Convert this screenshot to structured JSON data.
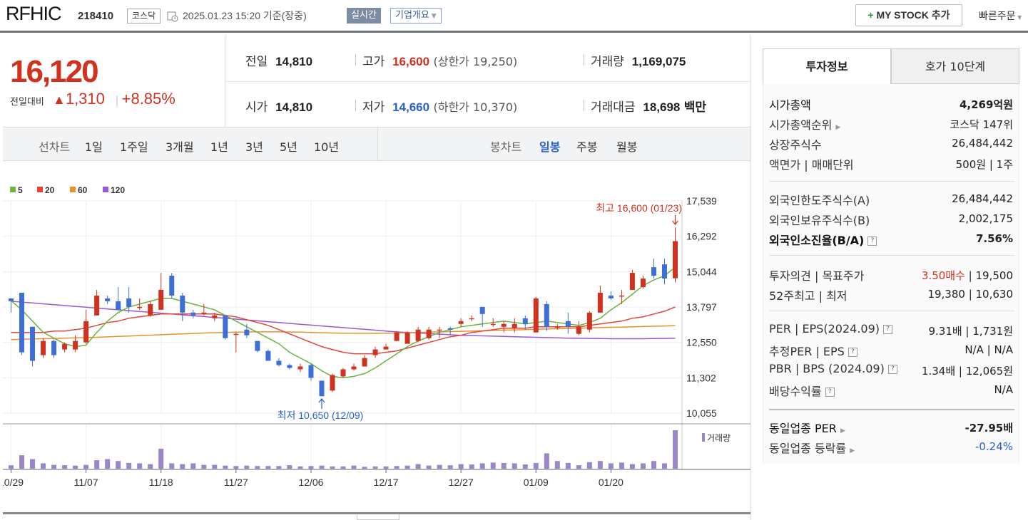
{
  "header": {
    "company": "RFHIC",
    "code": "218410",
    "market": "코스닥",
    "datetime": "2025.01.23 15:20 기준(장중)",
    "realtime": "실시간",
    "company_overview": "기업개요",
    "my_stock": "MY STOCK 추가",
    "quick_order": "빠른주문"
  },
  "summary": {
    "price": "16,120",
    "change_label": "전일대비",
    "change": "1,310",
    "change_pct": "+8.85%",
    "prev_close_label": "전일",
    "prev_close": "14,810",
    "high_label": "고가",
    "high": "16,600",
    "upper_limit": "(상한가 19,250)",
    "volume_label": "거래량",
    "volume": "1,169,075",
    "open_label": "시가",
    "open": "14,810",
    "low_label": "저가",
    "low": "14,660",
    "lower_limit": "(하한가 10,370)",
    "trade_value_label": "거래대금",
    "trade_value": "18,698",
    "trade_value_unit": "백만"
  },
  "tabs": {
    "line_chart": "선차트",
    "periods": [
      "1일",
      "1주일",
      "3개월",
      "1년",
      "3년",
      "5년",
      "10년"
    ],
    "candle_chart": "봉차트",
    "candles": [
      "일봉",
      "주봉",
      "월봉"
    ],
    "selected_candle": "일봉"
  },
  "chart_data": {
    "type": "candlestick",
    "legend": [
      {
        "name": "5",
        "color": "#6cb33f"
      },
      {
        "name": "20",
        "color": "#e0443a"
      },
      {
        "name": "60",
        "color": "#e8912c"
      },
      {
        "name": "120",
        "color": "#9b59d6"
      }
    ],
    "y_ticks": [
      "17,539",
      "16,292",
      "15,044",
      "13,797",
      "12,550",
      "11,302",
      "10,055"
    ],
    "ylim": [
      10055,
      17539
    ],
    "x_ticks": [
      "10/29",
      "11/07",
      "11/18",
      "11/27",
      "12/06",
      "12/17",
      "12/27",
      "01/09",
      "01/20"
    ],
    "x_tick_index": [
      0,
      7,
      14,
      21,
      28,
      35,
      42,
      49,
      56
    ],
    "high_annotation": "최고 16,600 (01/23)",
    "low_annotation": "최저 10,650 (12/09)",
    "volume_label": "거래량",
    "candles": [
      [
        14100,
        14000,
        14100,
        13600
      ],
      [
        14300,
        12200,
        14300,
        12100
      ],
      [
        13100,
        11900,
        13100,
        11700
      ],
      [
        12100,
        12600,
        12700,
        12000
      ],
      [
        12600,
        12100,
        12650,
        12000
      ],
      [
        12300,
        12500,
        12550,
        12200
      ],
      [
        12300,
        12600,
        12800,
        12200
      ],
      [
        12550,
        13300,
        13700,
        12500
      ],
      [
        13500,
        14200,
        14400,
        13500
      ],
      [
        14100,
        14000,
        14200,
        13900
      ],
      [
        14000,
        13700,
        14500,
        13700
      ],
      [
        14100,
        13800,
        14500,
        13600
      ],
      [
        13800,
        13800,
        14100,
        13700
      ],
      [
        13500,
        13900,
        14000,
        13450
      ],
      [
        13700,
        14400,
        15000,
        13700
      ],
      [
        14900,
        14200,
        15000,
        14100
      ],
      [
        14200,
        13600,
        14300,
        13300
      ],
      [
        13600,
        13500,
        13700,
        13400
      ],
      [
        13600,
        13600,
        13900,
        13500
      ],
      [
        13400,
        13500,
        13600,
        13300
      ],
      [
        13500,
        12700,
        13500,
        12650
      ],
      [
        12850,
        12850,
        12900,
        12200
      ],
      [
        13000,
        12800,
        13200,
        12700
      ],
      [
        12600,
        12250,
        12600,
        12200
      ],
      [
        12250,
        11900,
        12300,
        11900
      ],
      [
        11900,
        11750,
        12000,
        11700
      ],
      [
        11750,
        11650,
        11800,
        11600
      ],
      [
        11600,
        11700,
        11800,
        11500
      ],
      [
        11750,
        11300,
        11800,
        11200
      ],
      [
        11200,
        10650,
        11200,
        10650
      ],
      [
        10850,
        11400,
        11450,
        10800
      ],
      [
        11350,
        11600,
        11650,
        11300
      ],
      [
        11600,
        11700,
        11800,
        11550
      ],
      [
        11700,
        12000,
        12100,
        11700
      ],
      [
        12100,
        12300,
        12400,
        12000
      ],
      [
        12300,
        12400,
        12500,
        12300
      ],
      [
        12600,
        12900,
        12950,
        12600
      ],
      [
        12500,
        12900,
        12950,
        12500
      ],
      [
        12600,
        13000,
        13100,
        12550
      ],
      [
        12700,
        13000,
        13100,
        12650
      ],
      [
        13000,
        13000,
        13100,
        12700
      ],
      [
        13050,
        13000,
        13100,
        12800
      ],
      [
        13200,
        13300,
        13400,
        13100
      ],
      [
        13400,
        13400,
        13500,
        13300
      ],
      [
        13800,
        13550,
        13800,
        13100
      ],
      [
        13200,
        13200,
        13400,
        13100
      ],
      [
        13100,
        13200,
        13300,
        12900
      ],
      [
        13050,
        13200,
        13400,
        12900
      ],
      [
        13400,
        13200,
        13500,
        13000
      ],
      [
        12900,
        14100,
        14150,
        12900
      ],
      [
        13900,
        13100,
        14000,
        12950
      ],
      [
        13100,
        13100,
        13200,
        13000
      ],
      [
        13300,
        13100,
        13600,
        12850
      ],
      [
        12850,
        13100,
        13300,
        12800
      ],
      [
        13000,
        13600,
        13650,
        12900
      ],
      [
        13600,
        14300,
        14550,
        13600
      ],
      [
        14200,
        14100,
        14350,
        14050
      ],
      [
        14200,
        14200,
        14400,
        13900
      ],
      [
        14400,
        15000,
        15100,
        14400
      ],
      [
        14500,
        14800,
        14900,
        14450
      ],
      [
        15200,
        14900,
        15500,
        14800
      ],
      [
        15300,
        14800,
        15500,
        14600
      ],
      [
        14810,
        16120,
        16600,
        14660
      ]
    ],
    "volumes": [
      9,
      35,
      25,
      14,
      10,
      9,
      8,
      10,
      22,
      25,
      20,
      15,
      14,
      12,
      52,
      14,
      12,
      14,
      10,
      10,
      8,
      7,
      8,
      7,
      7,
      7,
      9,
      6,
      7,
      8,
      6,
      6,
      8,
      5,
      6,
      6,
      7,
      8,
      12,
      8,
      10,
      9,
      12,
      11,
      14,
      16,
      15,
      14,
      11,
      15,
      40,
      20,
      15,
      9,
      17,
      20,
      14,
      16,
      12,
      14,
      20,
      14,
      100
    ],
    "ma5": [
      14020,
      13700,
      13300,
      12900,
      12700,
      12500,
      12400,
      12450,
      12900,
      13300,
      13600,
      13800,
      13900,
      14000,
      14100,
      14100,
      14000,
      13900,
      13800,
      13700,
      13500,
      13300,
      13100,
      12900,
      12700,
      12500,
      12200,
      12000,
      11800,
      11550,
      11350,
      11300,
      11350,
      11450,
      11650,
      11900,
      12150,
      12400,
      12600,
      12750,
      12900,
      13000,
      13100,
      13150,
      13200,
      13250,
      13300,
      13250,
      13200,
      13250,
      13300,
      13250,
      13200,
      13150,
      13250,
      13400,
      13700,
      13950,
      14250,
      14550,
      14750,
      14900,
      15200
    ],
    "ma20": [
      12900,
      12900,
      12900,
      12900,
      12950,
      12950,
      13000,
      13050,
      13150,
      13250,
      13300,
      13400,
      13450,
      13500,
      13550,
      13550,
      13550,
      13550,
      13550,
      13550,
      13500,
      13450,
      13350,
      13250,
      13150,
      13000,
      12850,
      12700,
      12550,
      12400,
      12300,
      12200,
      12150,
      12150,
      12150,
      12200,
      12250,
      12350,
      12450,
      12550,
      12650,
      12750,
      12800,
      12900,
      12950,
      13000,
      13050,
      13050,
      13050,
      13100,
      13100,
      13100,
      13100,
      13100,
      13150,
      13200,
      13250,
      13300,
      13400,
      13450,
      13550,
      13650,
      13800
    ],
    "ma60": [
      12650,
      12660,
      12670,
      12680,
      12690,
      12700,
      12710,
      12720,
      12730,
      12745,
      12760,
      12775,
      12790,
      12805,
      12820,
      12835,
      12850,
      12865,
      12880,
      12890,
      12900,
      12910,
      12915,
      12920,
      12920,
      12920,
      12915,
      12910,
      12900,
      12890,
      12880,
      12875,
      12870,
      12870,
      12870,
      12875,
      12880,
      12890,
      12900,
      12910,
      12920,
      12930,
      12940,
      12950,
      12960,
      12970,
      12980,
      12990,
      13000,
      13010,
      13020,
      13030,
      13040,
      13050,
      13060,
      13070,
      13080,
      13090,
      13100,
      13110,
      13120,
      13130,
      13140
    ],
    "ma120": [
      14000,
      13970,
      13940,
      13910,
      13880,
      13850,
      13820,
      13790,
      13760,
      13730,
      13700,
      13670,
      13640,
      13610,
      13580,
      13550,
      13520,
      13490,
      13460,
      13430,
      13400,
      13370,
      13340,
      13310,
      13280,
      13250,
      13220,
      13190,
      13160,
      13130,
      13100,
      13070,
      13040,
      13010,
      12980,
      12950,
      12920,
      12900,
      12880,
      12860,
      12840,
      12820,
      12800,
      12790,
      12780,
      12770,
      12760,
      12750,
      12740,
      12730,
      12720,
      12710,
      12700,
      12695,
      12690,
      12685,
      12680,
      12680,
      12680,
      12680,
      12685,
      12690,
      12700
    ]
  },
  "side": {
    "tab_invest": "투자정보",
    "tab_hoga": "호가 10단계",
    "market_cap_label": "시가총액",
    "market_cap": "4,269억원",
    "market_cap_rank_label": "시가총액순위",
    "market_cap_rank": "코스닥 147위",
    "listed_shares_label": "상장주식수",
    "listed_shares": "26,484,442",
    "par_label": "액면가 | 매매단위",
    "par": "500원 | 1주",
    "foreign_limit_label": "외국인한도주식수(A)",
    "foreign_limit": "26,484,442",
    "foreign_hold_label": "외국인보유주식수(B)",
    "foreign_hold": "2,002,175",
    "foreign_ratio_label": "외국인소진율(B/A)",
    "foreign_ratio": "7.56%",
    "opinion_label": "투자의견 | 목표주가",
    "opinion": "3.50매수",
    "target": "19,500",
    "w52_label": "52주최고 | 최저",
    "w52": "19,380 | 10,630",
    "per_label": "PER | EPS(2024.09)",
    "per": "9.31배 | 1,731원",
    "est_per_label": "추정PER | EPS",
    "est_per": "N/A | N/A",
    "pbr_label": "PBR | BPS (2024.09)",
    "pbr": "1.34배 | 12,065원",
    "div_label": "배당수익률",
    "div": "N/A",
    "ind_per_label": "동일업종 PER",
    "ind_per": "-27.95배",
    "ind_chg_label": "동일업종 등락률",
    "ind_chg": "-0.24%"
  }
}
